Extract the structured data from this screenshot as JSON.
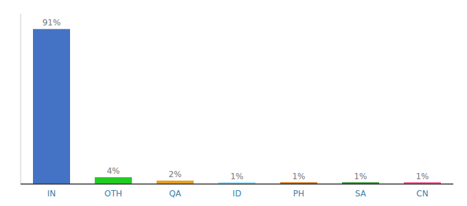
{
  "chart_data": {
    "type": "bar",
    "categories": [
      "IN",
      "OTH",
      "QA",
      "ID",
      "PH",
      "SA",
      "CN"
    ],
    "values": [
      91,
      4,
      2,
      1,
      1,
      1,
      1
    ],
    "value_labels": [
      "91%",
      "4%",
      "2%",
      "1%",
      "1%",
      "1%",
      "1%"
    ],
    "colors": [
      "#4472c4",
      "#22cc22",
      "#e8a020",
      "#88ddff",
      "#cc6600",
      "#228822",
      "#ee4488"
    ],
    "ylim": [
      0,
      100
    ],
    "data_labels": true,
    "tick_labels": "x"
  }
}
